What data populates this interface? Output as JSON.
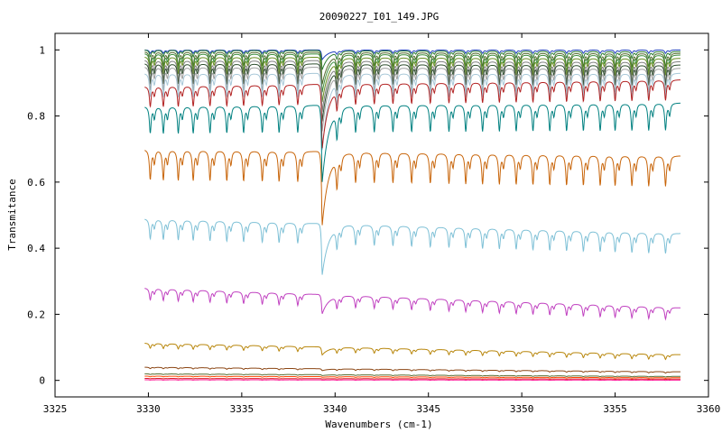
{
  "chart_data": {
    "type": "line",
    "title": "20090227_I01_149.JPG",
    "xlabel": "Wavenumbers (cm-1)",
    "ylabel": "Transmitance",
    "xlim": [
      3325,
      3360
    ],
    "ylim": [
      -0.05,
      1.05
    ],
    "x_ticks": [
      3325,
      3330,
      3335,
      3340,
      3345,
      3350,
      3355,
      3360
    ],
    "x_tick_labels": [
      "3325",
      "3330",
      "3335",
      "3340",
      "3345",
      "3350",
      "3355",
      "3360"
    ],
    "y_ticks": [
      0,
      0.2,
      0.4,
      0.6,
      0.8,
      1
    ],
    "y_tick_labels": [
      "0",
      "0.2",
      "0.4",
      "0.6",
      "0.8",
      "1"
    ],
    "grid": false,
    "x_range": [
      3329.8,
      3358.5
    ],
    "main_dip_x": 3339.3,
    "line_positions": [
      3330.1,
      3330.8,
      3331.6,
      3332.4,
      3333.3,
      3334.2,
      3335.1,
      3336.1,
      3337.0,
      3338.0,
      3339.3,
      3340.1,
      3341.1,
      3342.1,
      3343.1,
      3344.1,
      3345.1,
      3346.1,
      3347.0,
      3347.9,
      3348.8,
      3349.7,
      3350.6,
      3351.5,
      3352.4,
      3353.3,
      3354.2,
      3355.0,
      3355.9,
      3356.8,
      3357.7
    ],
    "series": [
      {
        "baseline_start": 1.0,
        "baseline_end": 1.0,
        "depth": 0.01,
        "main_dip": 0.03,
        "color": "#1f3fbf"
      },
      {
        "baseline_start": 1.0,
        "baseline_end": 0.995,
        "depth": 0.02,
        "main_dip": 0.06,
        "color": "#2e7d32"
      },
      {
        "baseline_start": 0.995,
        "baseline_end": 0.99,
        "depth": 0.04,
        "main_dip": 0.1,
        "color": "#556b2f"
      },
      {
        "baseline_start": 0.99,
        "baseline_end": 0.985,
        "depth": 0.05,
        "main_dip": 0.12,
        "color": "#3f8f3f"
      },
      {
        "baseline_start": 0.98,
        "baseline_end": 0.975,
        "depth": 0.05,
        "main_dip": 0.14,
        "color": "#6b8e23"
      },
      {
        "baseline_start": 0.97,
        "baseline_end": 0.965,
        "depth": 0.06,
        "main_dip": 0.16,
        "color": "#808080"
      },
      {
        "baseline_start": 0.96,
        "baseline_end": 0.955,
        "depth": 0.06,
        "main_dip": 0.18,
        "color": "#2f4f2f"
      },
      {
        "baseline_start": 0.95,
        "baseline_end": 0.945,
        "depth": 0.07,
        "main_dip": 0.2,
        "color": "#9e9e9e"
      },
      {
        "baseline_start": 0.93,
        "baseline_end": 0.93,
        "depth": 0.07,
        "main_dip": 0.24,
        "color": "#a8c8d8"
      },
      {
        "baseline_start": 0.89,
        "baseline_end": 0.91,
        "depth": 0.06,
        "main_dip": 0.2,
        "color": "#b22222"
      },
      {
        "baseline_start": 0.83,
        "baseline_end": 0.84,
        "depth": 0.08,
        "main_dip": 0.24,
        "color": "#008080"
      },
      {
        "baseline_start": 0.7,
        "baseline_end": 0.68,
        "depth": 0.09,
        "main_dip": 0.23,
        "color": "#c8650a"
      },
      {
        "baseline_start": 0.49,
        "baseline_end": 0.445,
        "depth": 0.06,
        "main_dip": 0.16,
        "color": "#7ec0d6"
      },
      {
        "baseline_start": 0.28,
        "baseline_end": 0.22,
        "depth": 0.035,
        "main_dip": 0.06,
        "color": "#c040c0"
      },
      {
        "baseline_start": 0.113,
        "baseline_end": 0.078,
        "depth": 0.015,
        "main_dip": 0.025,
        "color": "#b8860b"
      },
      {
        "baseline_start": 0.04,
        "baseline_end": 0.026,
        "depth": 0.004,
        "main_dip": 0.006,
        "color": "#8b4513"
      },
      {
        "baseline_start": 0.02,
        "baseline_end": 0.012,
        "depth": 0.002,
        "main_dip": 0.003,
        "color": "#556b2f"
      },
      {
        "baseline_start": 0.013,
        "baseline_end": 0.008,
        "depth": 0.002,
        "main_dip": 0.002,
        "color": "#ff4500"
      },
      {
        "baseline_start": 0.006,
        "baseline_end": 0.004,
        "depth": 0.001,
        "main_dip": 0.001,
        "color": "#d62728"
      },
      {
        "baseline_start": 0.002,
        "baseline_end": 0.001,
        "depth": 0.001,
        "main_dip": 0.001,
        "color": "#ff1493"
      }
    ]
  }
}
